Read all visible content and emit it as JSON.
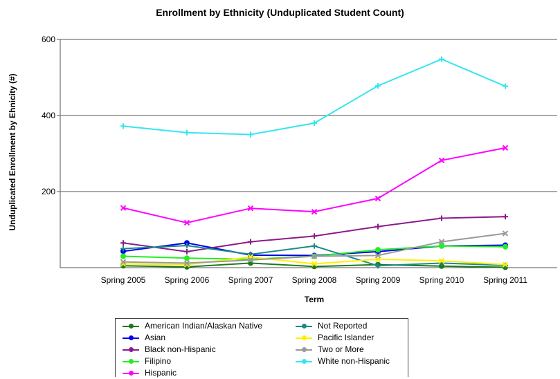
{
  "chart_data": {
    "type": "line",
    "title": "Enrollment by Ethnicity (Unduplicated Student Count)",
    "xlabel": "Term",
    "ylabel": "Unduplicated Enrollment by Ehnicity (#)",
    "categories": [
      "Spring 2005",
      "Spring 2006",
      "Spring 2007",
      "Spring 2008",
      "Spring 2009",
      "Spring 2010",
      "Spring 2011"
    ],
    "ylim": [
      0,
      600
    ],
    "yticks": [
      200,
      400,
      600
    ],
    "grid": true,
    "legend_position": "bottom",
    "series": [
      {
        "name": "American Indian/Alaskan Native",
        "color": "#1a7a1a",
        "marker": "circle",
        "values": [
          5,
          2,
          12,
          3,
          8,
          4,
          1
        ]
      },
      {
        "name": "Asian",
        "color": "#0000ee",
        "marker": "circle",
        "values": [
          43,
          65,
          33,
          32,
          42,
          57,
          59
        ]
      },
      {
        "name": "Black non-Hispanic",
        "color": "#8b1a8b",
        "marker": "plus",
        "values": [
          65,
          42,
          68,
          83,
          108,
          130,
          134
        ]
      },
      {
        "name": "Filipino",
        "color": "#22ee22",
        "marker": "circle",
        "values": [
          30,
          25,
          22,
          30,
          47,
          57,
          55
        ]
      },
      {
        "name": "Hispanic",
        "color": "#ff00ff",
        "marker": "x",
        "values": [
          157,
          118,
          156,
          147,
          182,
          282,
          315
        ]
      },
      {
        "name": "Not Reported",
        "color": "#1a8a8a",
        "marker": "plus",
        "values": [
          50,
          58,
          35,
          57,
          5,
          12,
          6
        ]
      },
      {
        "name": "Pacific Islander",
        "color": "#ffee00",
        "marker": "x",
        "values": [
          10,
          8,
          28,
          10,
          22,
          18,
          8
        ]
      },
      {
        "name": "Two or More",
        "color": "#999999",
        "marker": "x",
        "values": [
          15,
          12,
          20,
          30,
          32,
          68,
          90
        ]
      },
      {
        "name": "White non-Hispanic",
        "color": "#33e6f0",
        "marker": "plus",
        "values": [
          372,
          355,
          350,
          380,
          478,
          548,
          477
        ]
      }
    ]
  }
}
